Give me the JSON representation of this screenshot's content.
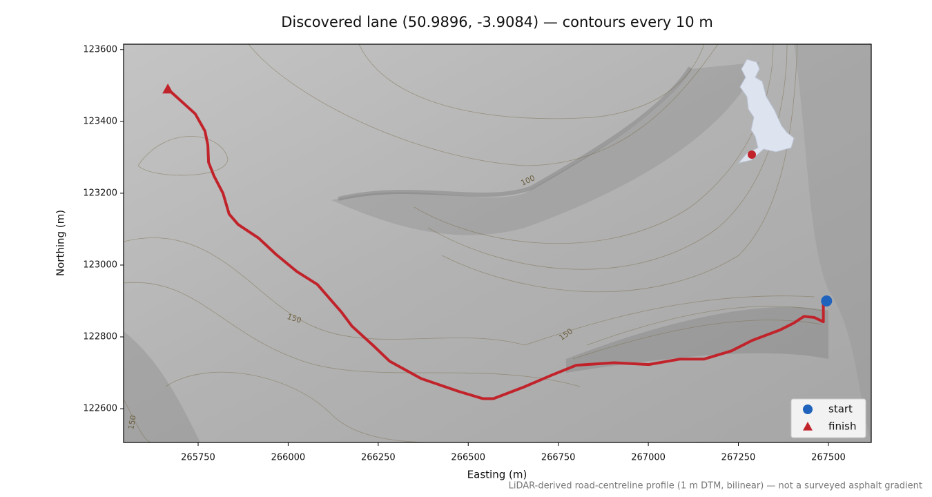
{
  "chart_data": {
    "type": "line",
    "title": "Discovered lane (50.9896, -3.9084) — contours every 10 m",
    "xlabel": "Easting (m)",
    "ylabel": "Northing (m)",
    "footnote": "LiDAR-derived road-centreline profile (1 m DTM, bilinear) — not a surveyed asphalt gradient",
    "xlim": [
      265543,
      267619
    ],
    "ylim": [
      122506,
      123615
    ],
    "xticks": [
      265750,
      266000,
      266250,
      266500,
      266750,
      267000,
      267250,
      267500
    ],
    "yticks": [
      122600,
      122800,
      123000,
      123200,
      123400,
      123600
    ],
    "route": {
      "color": "#c1232b",
      "x": [
        267495,
        267486,
        267486,
        267461,
        267432,
        267403,
        267365,
        267288,
        267231,
        267154,
        267087,
        267001,
        266905,
        266800,
        266733,
        266656,
        266570,
        266541,
        266474,
        266369,
        266282,
        266235,
        266177,
        266148,
        266081,
        266024,
        265966,
        265918,
        265861,
        265836,
        265819,
        265794,
        265779,
        265777,
        265769,
        265742,
        265666
      ],
      "y": [
        122900,
        122892,
        122842,
        122854,
        122857,
        122838,
        122819,
        122790,
        122761,
        122738,
        122738,
        122723,
        122728,
        122721,
        122694,
        122661,
        122628,
        122628,
        122648,
        122684,
        122732,
        122777,
        122830,
        122869,
        122946,
        122982,
        123030,
        123075,
        123113,
        123142,
        123200,
        123248,
        123286,
        123334,
        123373,
        123421,
        123490
      ]
    },
    "markers": [
      {
        "name": "start",
        "color": "#1f63bd",
        "shape": "circle",
        "x": [
          267495
        ],
        "y": [
          122900
        ]
      },
      {
        "name": "finish",
        "color": "#c1232b",
        "shape": "triangle",
        "x": [
          265666
        ],
        "y": [
          123490
        ]
      }
    ],
    "legend": "lower right",
    "contour_labels": [
      "100",
      "150",
      "150",
      "150"
    ]
  }
}
